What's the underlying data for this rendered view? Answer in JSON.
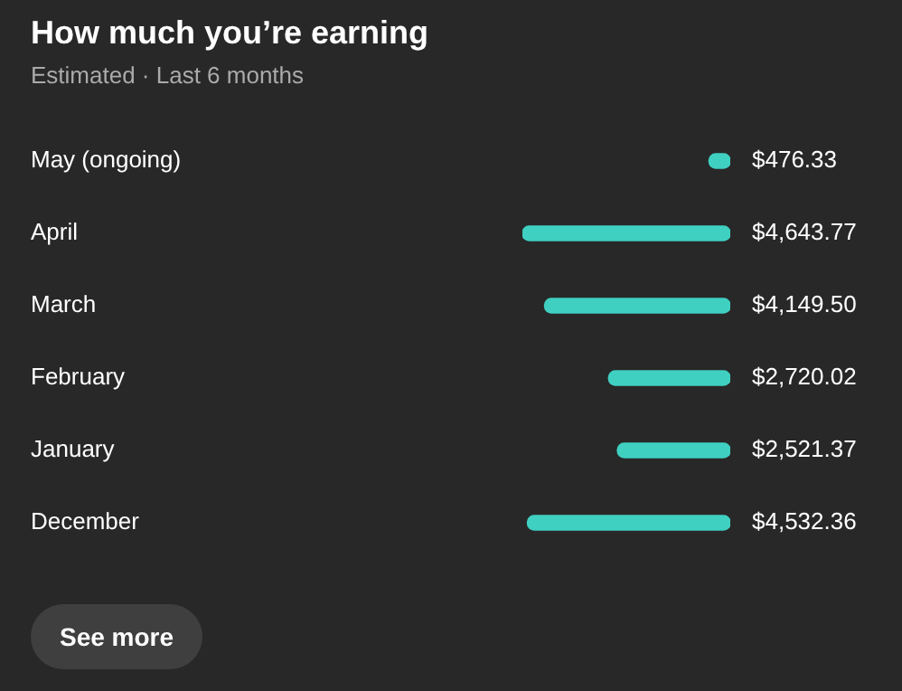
{
  "chart_data": {
    "type": "bar",
    "orientation": "horizontal",
    "title": "How much you’re earning",
    "subtitle": "Estimated · Last 6 months",
    "categories": [
      "May (ongoing)",
      "April",
      "March",
      "February",
      "January",
      "December"
    ],
    "values": [
      476.33,
      4643.77,
      4149.5,
      2720.02,
      2521.37,
      4532.36
    ],
    "value_labels": [
      "$476.33",
      "$4,643.77",
      "$4,149.50",
      "$2,720.02",
      "$2,521.37",
      "$4,532.36"
    ],
    "color": "#3fd0c1",
    "legend": false,
    "annotations": [
      "See more"
    ]
  }
}
